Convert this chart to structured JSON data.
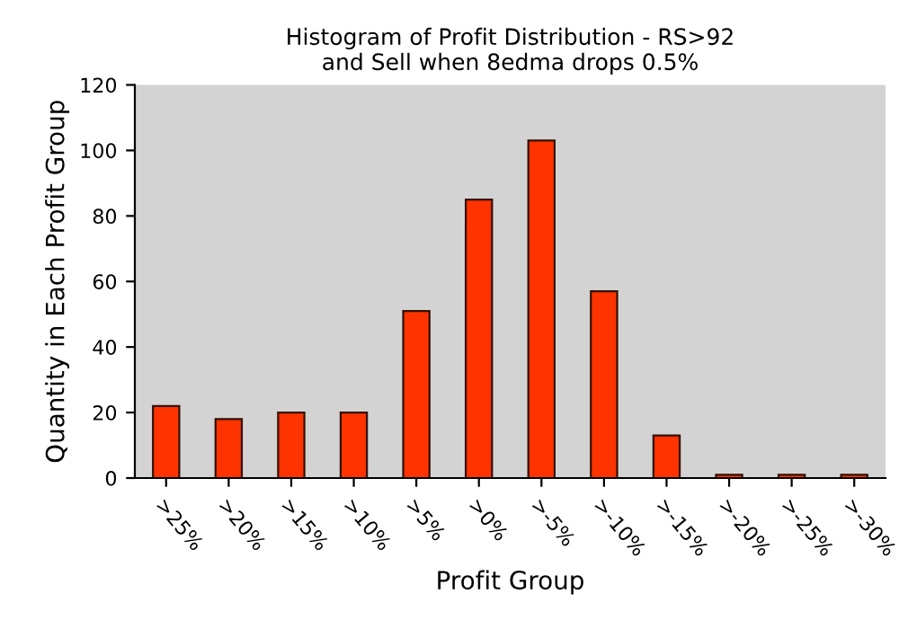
{
  "chart_data": {
    "type": "bar",
    "title": "Histogram of Profit Distribution - RS>92\nand Sell when 8edma drops 0.5%",
    "xlabel": "Profit Group",
    "ylabel": "Quantity in Each Profit Group",
    "categories": [
      ">25%",
      ">20%",
      ">15%",
      ">10%",
      ">5%",
      ">0%",
      ">-5%",
      ">-10%",
      ">-15%",
      ">-20%",
      ">-25%",
      ">-30%"
    ],
    "values": [
      22,
      18,
      20,
      20,
      51,
      85,
      103,
      57,
      13,
      1,
      1,
      1
    ],
    "color": "#ff3300",
    "ylim": [
      0,
      120
    ],
    "yticks": [
      0,
      20,
      40,
      60,
      80,
      100,
      120
    ],
    "grid": false
  }
}
